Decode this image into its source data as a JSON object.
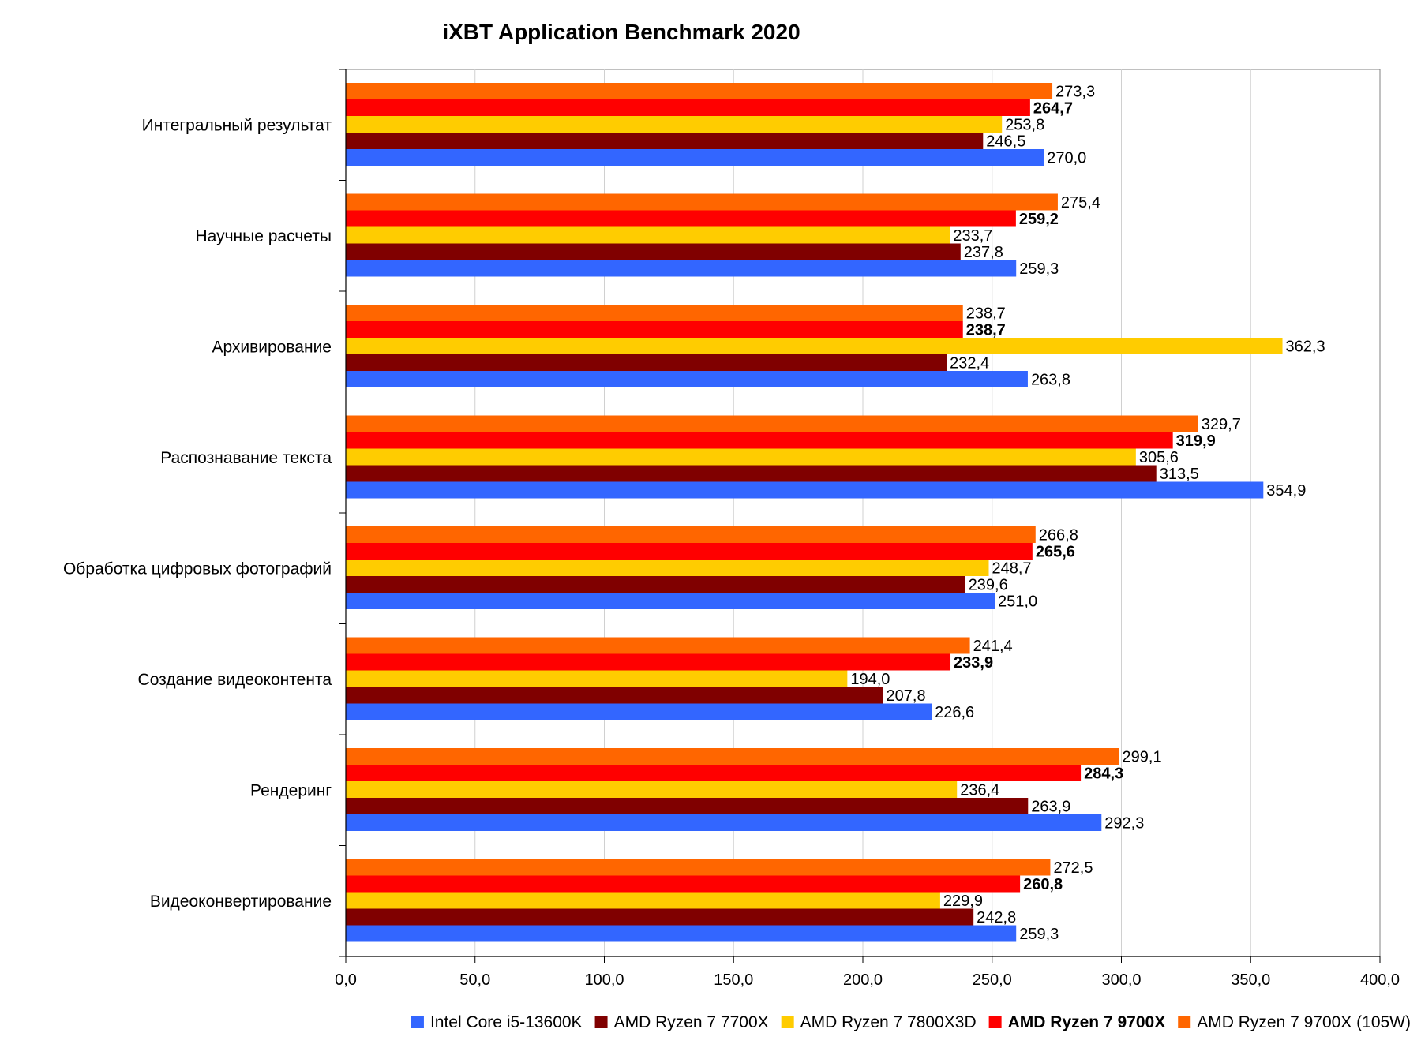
{
  "chart_data": {
    "type": "bar",
    "orientation": "horizontal",
    "title": "iXBT Application Benchmark 2020",
    "categories": [
      "Интегральный результат",
      "Научные расчеты",
      "Архивирование",
      "Распознавание текста",
      "Обработка цифровых фотографий",
      "Создание видеоконтента",
      "Рендеринг",
      "Видеоконвертирование"
    ],
    "series": [
      {
        "name": "Intel Core i5-13600K",
        "color": "#3366ff",
        "bold": false,
        "values": [
          270.0,
          259.3,
          263.8,
          354.9,
          251.0,
          226.6,
          292.3,
          259.3
        ],
        "labels": [
          "270,0",
          "259,3",
          "263,8",
          "354,9",
          "251,0",
          "226,6",
          "292,3",
          "259,3"
        ]
      },
      {
        "name": "AMD Ryzen 7 7700X",
        "color": "#800000",
        "bold": false,
        "values": [
          246.5,
          237.8,
          232.4,
          313.5,
          239.6,
          207.8,
          263.9,
          242.8
        ],
        "labels": [
          "246,5",
          "237,8",
          "232,4",
          "313,5",
          "239,6",
          "207,8",
          "263,9",
          "242,8"
        ]
      },
      {
        "name": "AMD Ryzen 7 7800X3D",
        "color": "#ffcc00",
        "bold": false,
        "values": [
          253.8,
          233.7,
          362.3,
          305.6,
          248.7,
          194.0,
          236.4,
          229.9
        ],
        "labels": [
          "253,8",
          "233,7",
          "362,3",
          "305,6",
          "248,7",
          "194,0",
          "236,4",
          "229,9"
        ]
      },
      {
        "name": "AMD Ryzen 7 9700X",
        "color": "#ff0000",
        "bold": true,
        "values": [
          264.7,
          259.2,
          238.7,
          319.9,
          265.6,
          233.9,
          284.3,
          260.8
        ],
        "labels": [
          "264,7",
          "259,2",
          "238,7",
          "319,9",
          "265,6",
          "233,9",
          "284,3",
          "260,8"
        ]
      },
      {
        "name": "AMD Ryzen 7 9700X (105W)",
        "color": "#ff6600",
        "bold": false,
        "values": [
          273.3,
          275.4,
          238.7,
          329.7,
          266.8,
          241.4,
          299.1,
          272.5
        ],
        "labels": [
          "273,3",
          "275,4",
          "238,7",
          "329,7",
          "266,8",
          "241,4",
          "299,1",
          "272,5"
        ]
      }
    ],
    "xlim": [
      0,
      400
    ],
    "xticks": [
      0,
      50,
      100,
      150,
      200,
      250,
      300,
      350,
      400
    ],
    "xtick_labels": [
      "0,0",
      "50,0",
      "100,0",
      "150,0",
      "200,0",
      "250,0",
      "300,0",
      "350,0",
      "400,0"
    ],
    "grid": "vertical",
    "legend": "bottom"
  }
}
